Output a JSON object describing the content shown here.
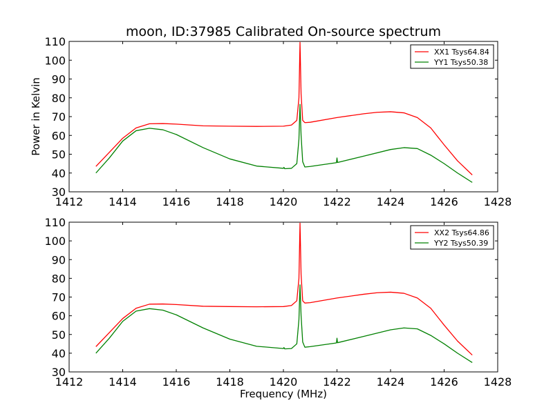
{
  "chart_data": [
    {
      "type": "line",
      "title": "moon, ID:37985 Calibrated On-source spectrum",
      "xlabel": "",
      "ylabel": "Power in Kelvin",
      "xlim": [
        1412,
        1428
      ],
      "ylim": [
        30,
        110
      ],
      "xticks": [
        1412,
        1414,
        1416,
        1418,
        1420,
        1422,
        1424,
        1426,
        1428
      ],
      "yticks": [
        30,
        40,
        50,
        60,
        70,
        80,
        90,
        100,
        110
      ],
      "grid": false,
      "legend_position": "top-right",
      "series": [
        {
          "name": "XX1 Tsys64.84",
          "color": "#ff0000",
          "x": [
            1413,
            1413.5,
            1414,
            1414.5,
            1415,
            1415.5,
            1416,
            1417,
            1418,
            1419,
            1420,
            1420.3,
            1420.5,
            1420.58,
            1420.62,
            1420.66,
            1420.72,
            1420.8,
            1421,
            1422,
            1423,
            1423.5,
            1424,
            1424.5,
            1425,
            1425.5,
            1426,
            1426.5,
            1427.05
          ],
          "y": [
            43.5,
            51,
            58.5,
            64,
            66.2,
            66.3,
            66,
            65.1,
            64.9,
            64.8,
            64.9,
            65.5,
            68,
            80,
            109.5,
            82,
            68,
            66.8,
            67,
            69.5,
            71.5,
            72.3,
            72.6,
            72,
            69.5,
            64,
            55,
            46.5,
            39
          ]
        },
        {
          "name": "YY1 Tsys50.38",
          "color": "#008000",
          "x": [
            1413,
            1413.5,
            1414,
            1414.5,
            1415,
            1415.5,
            1416,
            1417,
            1418,
            1419,
            1420,
            1420.02,
            1420.05,
            1420.3,
            1420.5,
            1420.58,
            1420.62,
            1420.66,
            1420.72,
            1420.8,
            1421,
            1421.98,
            1422,
            1422.02,
            1423,
            1424,
            1424.5,
            1425,
            1425.5,
            1426,
            1426.5,
            1427.05
          ],
          "y": [
            40,
            48,
            57,
            62.5,
            63.8,
            63,
            60.5,
            53.5,
            47.5,
            43.7,
            42.5,
            43,
            42.3,
            42.5,
            45,
            58,
            76.5,
            60,
            46,
            43.2,
            43.5,
            45.5,
            48,
            45.6,
            49,
            52.5,
            53.5,
            53,
            49.5,
            45,
            40,
            35
          ]
        }
      ]
    },
    {
      "type": "line",
      "title": "",
      "xlabel": "Frequency (MHz)",
      "ylabel": "",
      "xlim": [
        1412,
        1428
      ],
      "ylim": [
        30,
        110
      ],
      "xticks": [
        1412,
        1414,
        1416,
        1418,
        1420,
        1422,
        1424,
        1426,
        1428
      ],
      "yticks": [
        30,
        40,
        50,
        60,
        70,
        80,
        90,
        100,
        110
      ],
      "grid": false,
      "legend_position": "top-right",
      "series": [
        {
          "name": "XX2 Tsys64.86",
          "color": "#ff0000",
          "x": [
            1413,
            1413.5,
            1414,
            1414.5,
            1415,
            1415.5,
            1416,
            1417,
            1418,
            1419,
            1420,
            1420.3,
            1420.5,
            1420.58,
            1420.62,
            1420.66,
            1420.72,
            1420.8,
            1421,
            1422,
            1423,
            1423.5,
            1424,
            1424.5,
            1425,
            1425.5,
            1426,
            1426.5,
            1427.05
          ],
          "y": [
            43.5,
            51,
            58.5,
            64,
            66.2,
            66.3,
            66,
            65.1,
            64.9,
            64.8,
            64.9,
            65.5,
            68,
            80,
            109.5,
            82,
            68,
            66.8,
            67,
            69.5,
            71.5,
            72.3,
            72.6,
            72,
            69.5,
            64,
            55,
            46.5,
            39
          ]
        },
        {
          "name": "YY2 Tsys50.39",
          "color": "#008000",
          "x": [
            1413,
            1413.5,
            1414,
            1414.5,
            1415,
            1415.5,
            1416,
            1417,
            1418,
            1419,
            1420,
            1420.02,
            1420.05,
            1420.3,
            1420.5,
            1420.58,
            1420.62,
            1420.66,
            1420.72,
            1420.8,
            1421,
            1421.98,
            1422,
            1422.02,
            1423,
            1424,
            1424.5,
            1425,
            1425.5,
            1426,
            1426.5,
            1427.05
          ],
          "y": [
            40,
            48,
            57,
            62.5,
            63.8,
            63,
            60.5,
            53.5,
            47.5,
            43.7,
            42.5,
            43,
            42.3,
            42.5,
            45,
            58,
            76.5,
            60,
            46,
            43.2,
            43.5,
            45.5,
            48,
            45.6,
            49,
            52.5,
            53.5,
            53,
            49.5,
            45,
            40,
            35
          ]
        }
      ]
    }
  ]
}
